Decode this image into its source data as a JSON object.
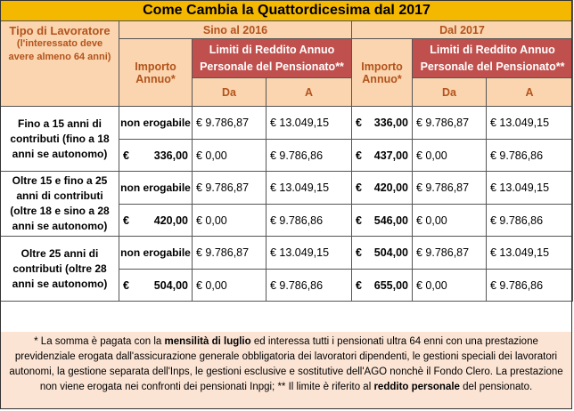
{
  "title": "Come Cambia la Quattordicesima dal 2017",
  "headers": {
    "worker_type": "Tipo di Lavoratore",
    "worker_note": "(l'interessato deve avere almeno 64 anni)",
    "period_2016": "Sino al 2016",
    "period_2017": "Dal 2017",
    "importo": "Importo Annuo*",
    "limiti": "Limiti di Reddito Annuo Personale del Pensionato**",
    "da": "Da",
    "a": "A"
  },
  "rows": [
    {
      "group": "Fino a 15 anni di contributi (fino a 18 anni se autonomo)",
      "lines": [
        {
          "imp2016": "non erogabile",
          "da2016": "€ 9.786,87",
          "a2016": "€ 13.049,15",
          "imp2017": "336,00",
          "da2017": "€ 9.786,87",
          "a2017": "€ 13.049,15"
        },
        {
          "imp2016": "336,00",
          "da2016": "€ 0,00",
          "a2016": "€ 9.786,86",
          "imp2017": "437,00",
          "da2017": "€ 0,00",
          "a2017": "€ 9.786,86"
        }
      ]
    },
    {
      "group": "Oltre 15 e fino a 25 anni di contributi (oltre 18 e sino a 28 anni se autonomo)",
      "lines": [
        {
          "imp2016": "non erogabile",
          "da2016": "€ 9.786,87",
          "a2016": "€ 13.049,15",
          "imp2017": "420,00",
          "da2017": "€ 9.786,87",
          "a2017": "€ 13.049,15"
        },
        {
          "imp2016": "420,00",
          "da2016": "€ 0,00",
          "a2016": "€ 9.786,86",
          "imp2017": "546,00",
          "da2017": "€ 0,00",
          "a2017": "€ 9.786,86"
        }
      ]
    },
    {
      "group": "Oltre 25 anni di contributi (oltre 28 anni se autonomo)",
      "lines": [
        {
          "imp2016": "non erogabile",
          "da2016": "€ 9.786,87",
          "a2016": "€ 13.049,15",
          "imp2017": "504,00",
          "da2017": "€ 9.786,87",
          "a2017": "€ 13.049,15"
        },
        {
          "imp2016": "504,00",
          "da2016": "€ 0,00",
          "a2016": "€ 9.786,86",
          "imp2017": "655,00",
          "da2017": "€ 0,00",
          "a2017": "€ 9.786,86"
        }
      ]
    }
  ],
  "euro_symbol": "€",
  "footnote": {
    "p1": "* La somma è pagata con la ",
    "b1": "mensilità di luglio",
    "p2": " ed interessa tutti i pensionati ultra 64 enni con una prestazione previdenziale erogata dall'assicurazione generale obbligatoria dei lavoratori dipendenti, le gestioni speciali dei lavoratori autonomi, la gestione separata dell'Inps, le gestioni esclusive e sostitutive dell'AGO nonchè il Fondo Clero. La prestazione non viene erogata nei confronti dei pensionati Inpgi; ** Il limite è riferito al ",
    "b2": "reddito personale",
    "p3": " del pensionato."
  }
}
